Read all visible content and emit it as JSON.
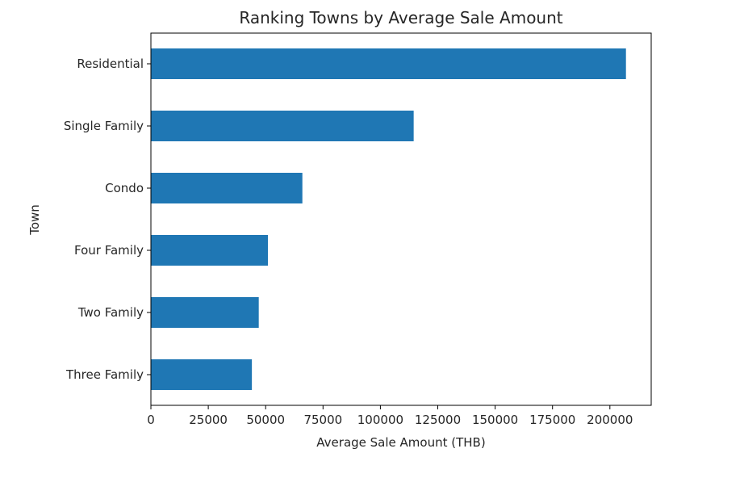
{
  "chart_data": {
    "type": "bar",
    "orientation": "horizontal",
    "title": "Ranking Towns by Average Sale Amount",
    "xlabel": "Average Sale Amount (THB)",
    "ylabel": "Town",
    "categories": [
      "Residential",
      "Single Family",
      "Condo",
      "Four Family",
      "Two Family",
      "Three Family"
    ],
    "values": [
      207000,
      114500,
      66000,
      51000,
      47000,
      44000
    ],
    "xlim": [
      0,
      218000
    ],
    "xticks": [
      0,
      25000,
      50000,
      75000,
      100000,
      125000,
      150000,
      175000,
      200000
    ],
    "xtick_labels": [
      "0",
      "25000",
      "50000",
      "75000",
      "100000",
      "125000",
      "150000",
      "175000",
      "200000"
    ],
    "grid": false,
    "colors": {
      "bar": "#1f77b4"
    }
  }
}
